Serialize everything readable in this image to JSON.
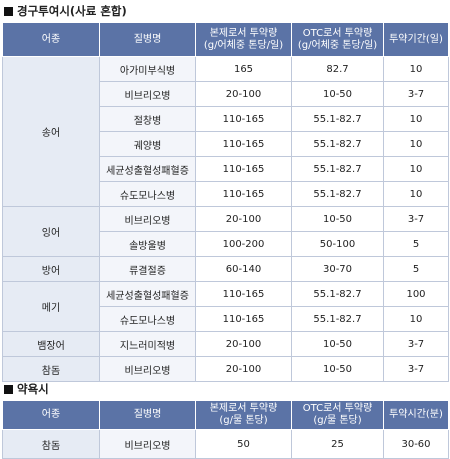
{
  "section1": {
    "title": "경구투여시(사료 혼합)",
    "headers": [
      "어종",
      "질병명",
      "본제로서 투약량\n(g/어체중 톤당/일)",
      "OTC로서 투약량\n(g/어체중 톤당/일)",
      "투약기간(일)"
    ],
    "groups": [
      {
        "fish": "송어",
        "rows": [
          [
            "아가미부식병",
            "165",
            "82.7",
            "10"
          ],
          [
            "비브리오병",
            "20-100",
            "10-50",
            "3-7"
          ],
          [
            "절창병",
            "110-165",
            "55.1-82.7",
            "10"
          ],
          [
            "궤양병",
            "110-165",
            "55.1-82.7",
            "10"
          ],
          [
            "세균성출혈성패혈증",
            "110-165",
            "55.1-82.7",
            "10"
          ],
          [
            "슈도모나스병",
            "110-165",
            "55.1-82.7",
            "10"
          ]
        ]
      },
      {
        "fish": "잉어",
        "rows": [
          [
            "비브리오병",
            "20-100",
            "10-50",
            "3-7"
          ],
          [
            "솔방울병",
            "100-200",
            "50-100",
            "5"
          ]
        ]
      },
      {
        "fish": "방어",
        "rows": [
          [
            "류결절증",
            "60-140",
            "30-70",
            "5"
          ]
        ]
      },
      {
        "fish": "메기",
        "rows": [
          [
            "세균성출혈성패혈증",
            "110-165",
            "55.1-82.7",
            "100"
          ],
          [
            "슈도모나스병",
            "110-165",
            "55.1-82.7",
            "10"
          ]
        ]
      },
      {
        "fish": "뱀장어",
        "rows": [
          [
            "지느러미적병",
            "20-100",
            "10-50",
            "3-7"
          ]
        ]
      },
      {
        "fish": "참돔",
        "rows": [
          [
            "비브리오병",
            "20-100",
            "10-50",
            "3-7"
          ]
        ]
      }
    ]
  },
  "section2": {
    "title": "약욕시",
    "headers": [
      "어종",
      "질병명",
      "본제로서 투약량\n(g/물 톤당)",
      "OTC로서 투약량\n(g/물 톤당)",
      "투약시간(분)"
    ],
    "rows": [
      [
        "참돔",
        "비브리오병",
        "50",
        "25",
        "30-60"
      ]
    ]
  }
}
